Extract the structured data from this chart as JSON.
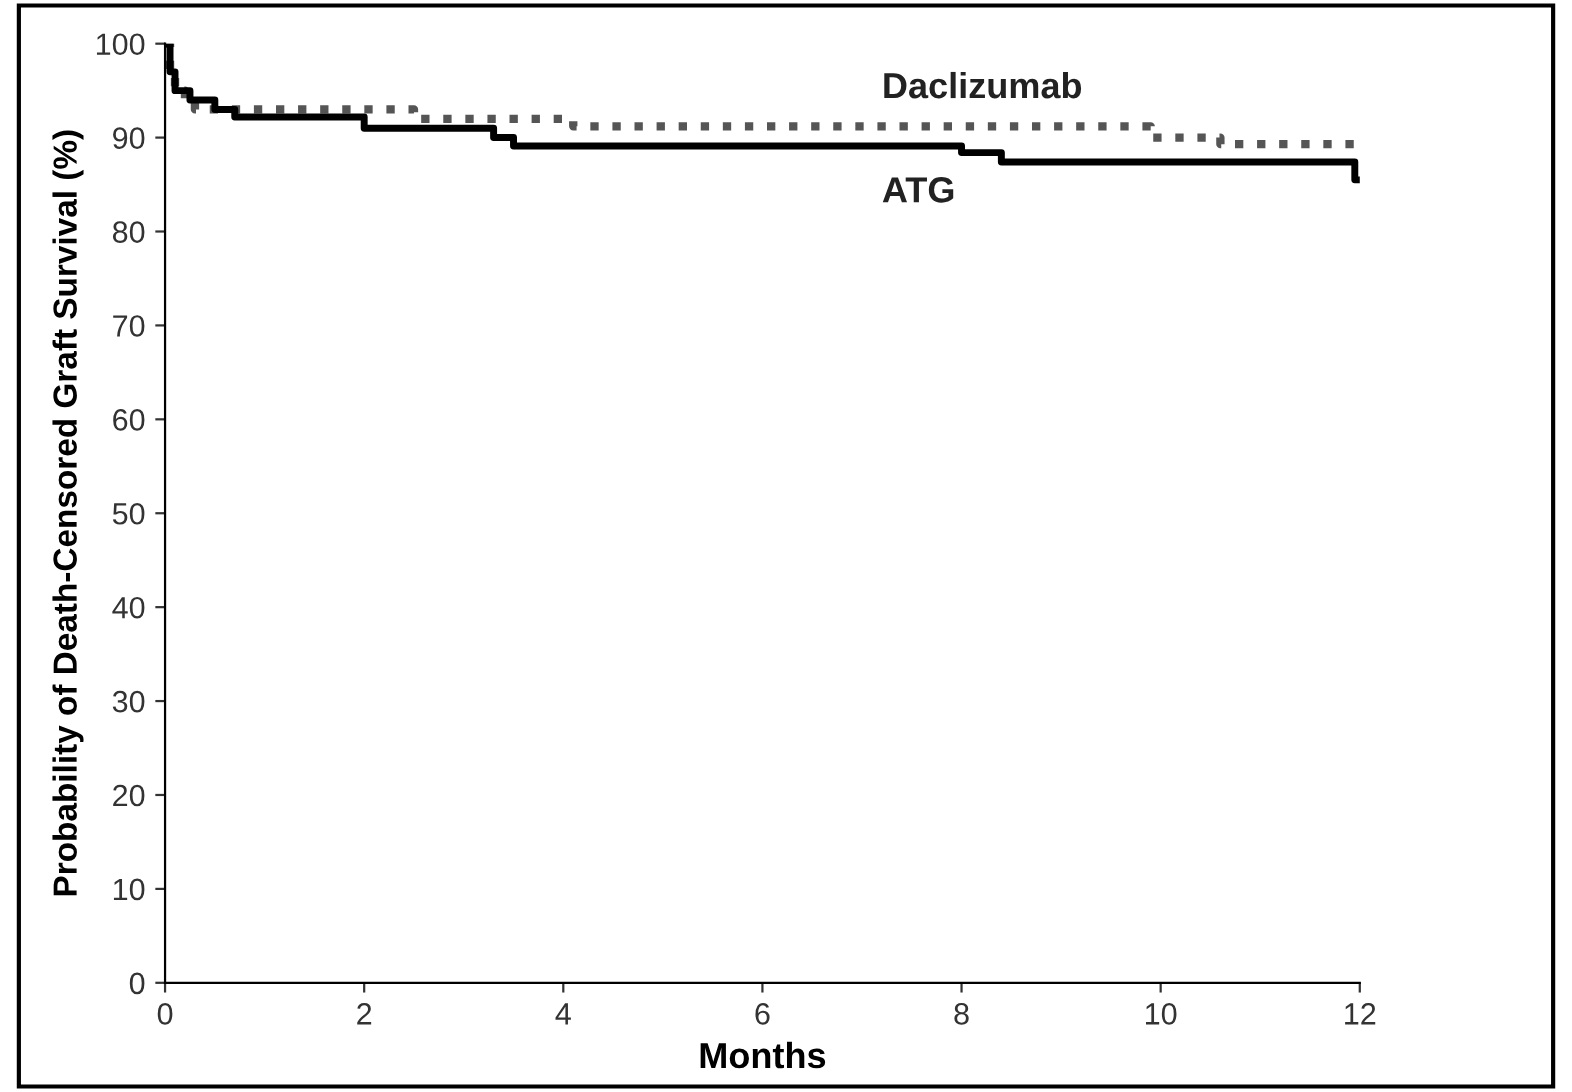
{
  "chart_data": {
    "type": "step",
    "xlabel": "Months",
    "ylabel": "Probability of Death-Censored Graft Survival (%)",
    "xlim": [
      0,
      12
    ],
    "ylim": [
      0,
      100
    ],
    "xticks": [
      0,
      2,
      4,
      6,
      8,
      10,
      12
    ],
    "yticks": [
      0,
      10,
      20,
      30,
      40,
      50,
      60,
      70,
      80,
      90,
      100
    ],
    "grid": false,
    "legend": false,
    "series": [
      {
        "name": "Daclizumab",
        "color": "#555555",
        "line_style": "dotted",
        "x": [
          0,
          0.05,
          0.1,
          0.2,
          0.3,
          2.5,
          4.1,
          9.9,
          10.6,
          12
        ],
        "values": [
          100,
          97,
          95,
          94,
          93,
          92,
          91.2,
          90,
          89.3,
          89.3
        ]
      },
      {
        "name": "ATG",
        "color": "#000000",
        "line_style": "solid",
        "x": [
          0,
          0.05,
          0.1,
          0.25,
          0.5,
          0.7,
          2.0,
          3.3,
          3.5,
          8.0,
          8.4,
          11.95,
          12
        ],
        "values": [
          100,
          97,
          95,
          94,
          93,
          92.2,
          91,
          90,
          89.1,
          88.4,
          87.4,
          85.5,
          85.5
        ]
      }
    ]
  }
}
